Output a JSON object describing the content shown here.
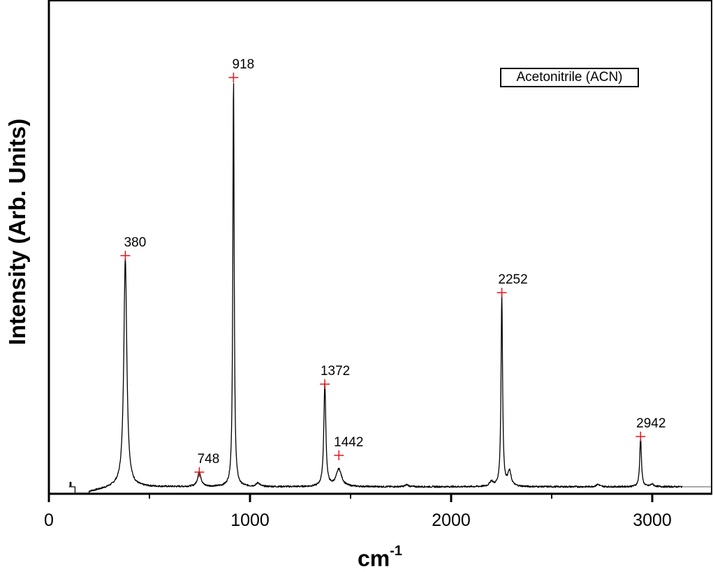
{
  "chart_data": {
    "type": "line",
    "title": "",
    "xlabel": "cm-1",
    "xlabel_base": "cm",
    "xlabel_sup": "-1",
    "ylabel": "Intensity (Arb. Units)",
    "xlim": [
      0,
      3295
    ],
    "ylim": [
      0,
      1.0
    ],
    "x_ticks": [
      0,
      1000,
      2000,
      3000
    ],
    "x_tick_labels": [
      "0",
      "1000",
      "2000",
      "3000"
    ],
    "x_minor_ticks": [
      500,
      1500,
      2500
    ],
    "y_ticks": [],
    "grid": false,
    "legend": {
      "position": "upper right",
      "entries": [
        "Acetonitrile (ACN)"
      ]
    },
    "series": [
      {
        "name": "Acetonitrile (ACN)",
        "color": "#000000",
        "marker_color": "#e8141c",
        "peaks": [
          {
            "x": 380,
            "label": "380",
            "intensity": 0.56
          },
          {
            "x": 748,
            "label": "748",
            "intensity": 0.036
          },
          {
            "x": 918,
            "label": "918",
            "intensity": 1.0
          },
          {
            "x": 1372,
            "label": "1372",
            "intensity": 0.25
          },
          {
            "x": 1442,
            "label": "1442",
            "intensity": 0.077
          },
          {
            "x": 2252,
            "label": "2252",
            "intensity": 0.47
          },
          {
            "x": 2942,
            "label": "2942",
            "intensity": 0.12
          }
        ],
        "minor_features": [
          {
            "x": 1040,
            "intensity": 0.009
          },
          {
            "x": 1780,
            "intensity": 0.005
          },
          {
            "x": 2200,
            "intensity": 0.012
          },
          {
            "x": 2290,
            "intensity": 0.036
          },
          {
            "x": 2730,
            "intensity": 0.006
          },
          {
            "x": 3000,
            "intensity": 0.006
          }
        ],
        "data_range": [
          100,
          3150
        ]
      }
    ],
    "annotations": [
      "380",
      "748",
      "918",
      "1372",
      "1442",
      "2252",
      "2942"
    ]
  },
  "axes": {
    "x_label_base": "cm",
    "x_label_sup": "-1",
    "y_label": "Intensity (Arb. Units)"
  },
  "legend": {
    "label": "Acetonitrile (ACN)"
  }
}
